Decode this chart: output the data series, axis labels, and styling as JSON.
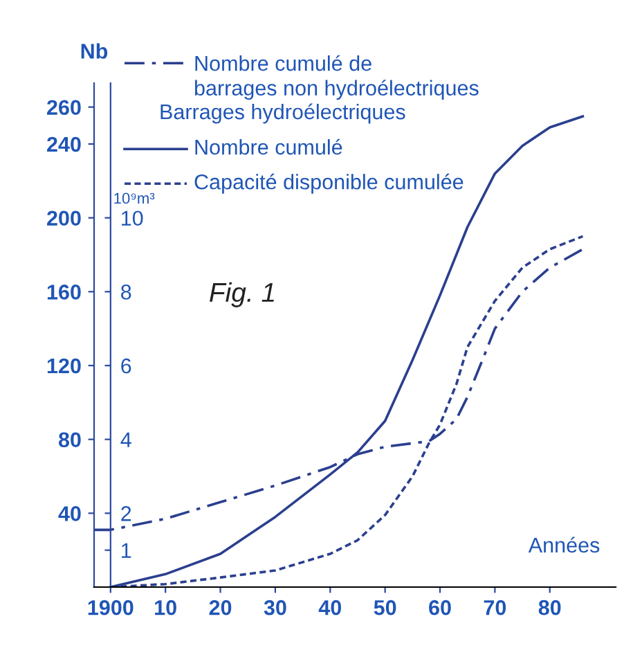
{
  "chart_data": {
    "type": "line",
    "xlabel": "Années",
    "ylabel": "Nb",
    "y2label": "10⁹m³",
    "legend_title": "Barrages hydroélectriques",
    "annotations": [
      "Fig. 1"
    ],
    "xlim": [
      1897,
      1992
    ],
    "xticks": [
      {
        "value": 1900,
        "label": "1900"
      },
      {
        "value": 1910,
        "label": "10"
      },
      {
        "value": 1920,
        "label": "20"
      },
      {
        "value": 1930,
        "label": "30"
      },
      {
        "value": 1940,
        "label": "40"
      },
      {
        "value": 1950,
        "label": "50"
      },
      {
        "value": 1960,
        "label": "60"
      },
      {
        "value": 1970,
        "label": "70"
      },
      {
        "value": 1980,
        "label": "80"
      }
    ],
    "ylim": [
      0,
      273
    ],
    "yticks": [
      40,
      80,
      120,
      160,
      200,
      240,
      260
    ],
    "y2lim": [
      0,
      13.65
    ],
    "y2ticks": [
      1,
      2,
      4,
      6,
      8,
      10
    ],
    "grid": false,
    "legend": "top",
    "marker": "none",
    "series": [
      {
        "name": "Nombre cumulé de\nbarrages non hydroélectriques",
        "color": "#2b3f8f",
        "line_style": "dashdot",
        "x": [
          1897,
          1900,
          1910,
          1920,
          1930,
          1940,
          1945,
          1950,
          1958,
          1960,
          1963,
          1965,
          1968,
          1970,
          1975,
          1980,
          1986
        ],
        "values": [
          31,
          31,
          37,
          46,
          55,
          65,
          72,
          76,
          79,
          83,
          91,
          103,
          125,
          140,
          160,
          173,
          183
        ]
      },
      {
        "name": "Nombre cumulé",
        "color": "#2b3f8f",
        "line_style": "solid",
        "x": [
          1900,
          1910,
          1920,
          1930,
          1940,
          1945,
          1950,
          1955,
          1960,
          1965,
          1970,
          1975,
          1980,
          1986
        ],
        "values": [
          0,
          7,
          18,
          38,
          61,
          73,
          90,
          123,
          158,
          195,
          224,
          239,
          249,
          255
        ]
      },
      {
        "name": "Capacité disponible cumulée",
        "color": "#2b3f8f",
        "line_style": "dashed",
        "axis": "y2",
        "x": [
          1900,
          1910,
          1920,
          1930,
          1940,
          1945,
          1950,
          1955,
          1958,
          1960,
          1963,
          1965,
          1970,
          1975,
          1980,
          1986
        ],
        "values": [
          0,
          0.08,
          0.26,
          0.45,
          0.9,
          1.27,
          1.95,
          3.0,
          3.9,
          4.4,
          5.5,
          6.5,
          7.75,
          8.65,
          9.15,
          9.5
        ]
      }
    ]
  }
}
